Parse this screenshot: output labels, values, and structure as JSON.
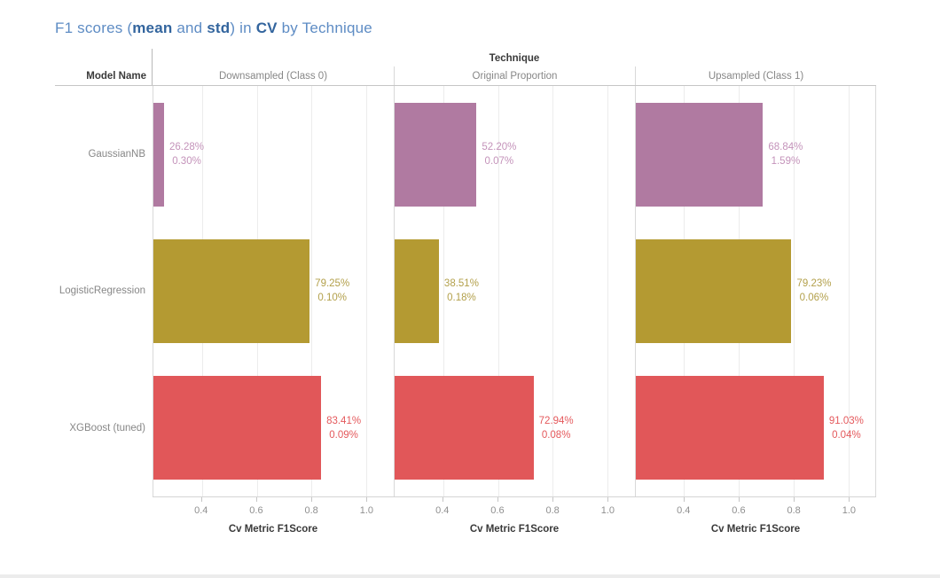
{
  "title": {
    "segments": [
      {
        "text": "F1 scores (",
        "bold": false
      },
      {
        "text": "mean",
        "bold": true
      },
      {
        "text": " and ",
        "bold": false
      },
      {
        "text": "std",
        "bold": true
      },
      {
        "text": ") in ",
        "bold": false
      },
      {
        "text": "CV",
        "bold": true
      },
      {
        "text": " by Technique",
        "bold": false
      }
    ]
  },
  "chart_data": {
    "type": "bar",
    "orientation": "horizontal",
    "title": "F1 scores (mean and std) in CV by Technique",
    "facet_header": "Technique",
    "row_header": "Model Name",
    "xlabel": "Cv Metric F1Score",
    "x_domain": [
      0.224,
      1.0985
    ],
    "x_tick_values": [
      0.4,
      0.6,
      0.8,
      1.0
    ],
    "x_tick_labels": [
      "0.4",
      "0.6",
      "0.8",
      "1.0"
    ],
    "grid": true,
    "models": [
      {
        "name": "GaussianNB",
        "color": "#b07aa1",
        "label_color": "#c493ba"
      },
      {
        "name": "LogisticRegression",
        "color": "#b49a32",
        "label_color": "#b3a04b"
      },
      {
        "name": "XGBoost (tuned)",
        "color": "#e15759",
        "label_color": "#e4595c"
      }
    ],
    "panels": [
      {
        "label": "Downsampled (Class 0)",
        "bars": [
          {
            "model": "GaussianNB",
            "mean_pct": 26.28,
            "std_pct": 0.3,
            "mean_label": "26.28%",
            "std_label": "0.30%"
          },
          {
            "model": "LogisticRegression",
            "mean_pct": 79.25,
            "std_pct": 0.1,
            "mean_label": "79.25%",
            "std_label": "0.10%"
          },
          {
            "model": "XGBoost (tuned)",
            "mean_pct": 83.41,
            "std_pct": 0.09,
            "mean_label": "83.41%",
            "std_label": "0.09%"
          }
        ]
      },
      {
        "label": "Original Proportion",
        "bars": [
          {
            "model": "GaussianNB",
            "mean_pct": 52.2,
            "std_pct": 0.07,
            "mean_label": "52.20%",
            "std_label": "0.07%"
          },
          {
            "model": "LogisticRegression",
            "mean_pct": 38.51,
            "std_pct": 0.18,
            "mean_label": "38.51%",
            "std_label": "0.18%"
          },
          {
            "model": "XGBoost (tuned)",
            "mean_pct": 72.94,
            "std_pct": 0.08,
            "mean_label": "72.94%",
            "std_label": "0.08%"
          }
        ]
      },
      {
        "label": "Upsampled (Class 1)",
        "bars": [
          {
            "model": "GaussianNB",
            "mean_pct": 68.84,
            "std_pct": 1.59,
            "mean_label": "68.84%",
            "std_label": "1.59%"
          },
          {
            "model": "LogisticRegression",
            "mean_pct": 79.23,
            "std_pct": 0.06,
            "mean_label": "79.23%",
            "std_label": "0.06%"
          },
          {
            "model": "XGBoost (tuned)",
            "mean_pct": 91.03,
            "std_pct": 0.04,
            "mean_label": "91.03%",
            "std_label": "0.04%"
          }
        ]
      }
    ]
  }
}
